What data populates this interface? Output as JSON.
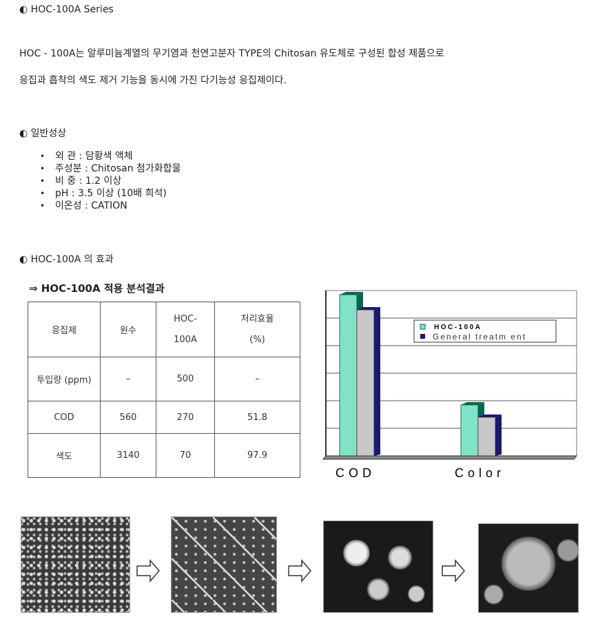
{
  "section1": {
    "bullet_icon": "half-circle-icon",
    "title": "HOC-100A Series",
    "para1": "HOC - 100A는 알루미늄계열의 무기염과 천연고분자 TYPE의 Chitosan 유도체로 구성된 합성 제품으로",
    "para2": "응집과 흡착의 색도 제거 기능을 동시에 가진 다기능성 응집제이다."
  },
  "section2": {
    "title": "일반성상",
    "items": [
      "외 관 : 담황색 액체",
      "주성분 : Chitosan 첨가화합물",
      "비 중 : 1.2 이상",
      "pH : 3.5 이상 (10배 희석)",
      "이온성 : CATION"
    ]
  },
  "section3": {
    "title": "HOC-100A 의 효과",
    "table_title": "⇒ HOC-100A 적용 분석결과",
    "table": {
      "headers": [
        "응집제",
        "원수",
        "HOC-100A",
        "처리효율 (%)"
      ],
      "header_lines": [
        [
          "응집제"
        ],
        [
          "원수"
        ],
        [
          "HOC-",
          "100A"
        ],
        [
          "처리효율",
          "(%)"
        ]
      ],
      "rows": [
        [
          "투입량 (ppm)",
          "–",
          "500",
          "–"
        ],
        [
          "COD",
          "560",
          "270",
          "51.8"
        ],
        [
          "색도",
          "3140",
          "70",
          "97.9"
        ]
      ]
    }
  },
  "chart_data": {
    "type": "bar",
    "categories": [
      "COD",
      "Color"
    ],
    "series": [
      {
        "name": "HOC-100A",
        "values": [
          5.85,
          1.85
        ],
        "color": "#7fe3c8"
      },
      {
        "name": "General treatm ent",
        "values": [
          5.3,
          1.4
        ],
        "color": "#c8c8c8"
      }
    ],
    "ylim": [
      0,
      6
    ],
    "grid": true,
    "legend": "top-right",
    "axis_tick_labels": "none",
    "colors": {
      "side_hoc": "#006b4f",
      "side_gen": "#1a1a6e"
    }
  },
  "images": [
    "micrograph-1",
    "micrograph-2",
    "micrograph-3",
    "micrograph-4"
  ]
}
